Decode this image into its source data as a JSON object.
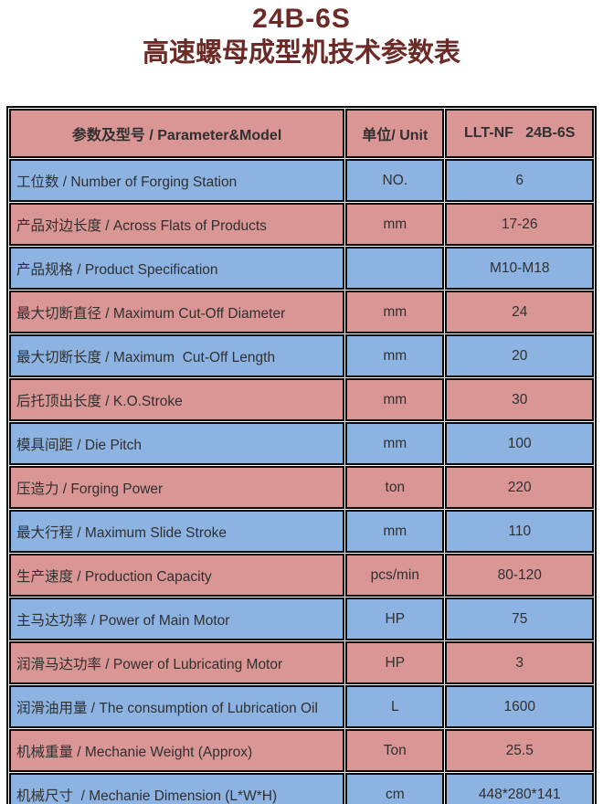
{
  "page": {
    "title": "24B-6S",
    "subtitle": "高速螺母成型机技术参数表"
  },
  "colors": {
    "title_text": "#6B2A26",
    "header_row": "#D99694",
    "row_pink": "#D99694",
    "row_blue": "#8DB3E2",
    "cell_border": "#0A0A0A",
    "cell_text": "#303030"
  },
  "table": {
    "columns": {
      "parameter": "参数及型号 / Parameter&Model",
      "unit": "单位/ Unit",
      "model": "LLT-NF   24B-6S"
    },
    "rows": [
      {
        "label": "工位数 / Number of Forging Station",
        "unit": "NO.",
        "value": "6"
      },
      {
        "label": "产品对边长度 / Across Flats of Products",
        "unit": "mm",
        "value": "17-26"
      },
      {
        "label": "产品规格 / Product Specification",
        "unit": "",
        "value": "M10-M18"
      },
      {
        "label": "最大切断直径 / Maximum Cut-Off Diameter",
        "unit": "mm",
        "value": "24"
      },
      {
        "label": "最大切断长度 / Maximum  Cut-Off Length",
        "unit": "mm",
        "value": "20"
      },
      {
        "label": "后托顶出长度 / K.O.Stroke",
        "unit": "mm",
        "value": "30"
      },
      {
        "label": "模具间距 / Die Pitch",
        "unit": "mm",
        "value": "100"
      },
      {
        "label": "压造力 / Forging Power",
        "unit": "ton",
        "value": "220"
      },
      {
        "label": "最大行程 / Maximum Slide Stroke",
        "unit": "mm",
        "value": "110"
      },
      {
        "label": "生产速度 / Production Capacity",
        "unit": "pcs/min",
        "value": "80-120"
      },
      {
        "label": "主马达功率 / Power of Main Motor",
        "unit": "HP",
        "value": "75"
      },
      {
        "label": "润滑马达功率 / Power of Lubricating Motor",
        "unit": "HP",
        "value": "3"
      },
      {
        "label": "润滑油用量 / The consumption of Lubrication Oil",
        "unit": "L",
        "value": "1600"
      },
      {
        "label": "机械重量 / Mechanie Weight (Approx)",
        "unit": "Ton",
        "value": "25.5"
      },
      {
        "label": "机械尺寸  / Mechanie Dimension (L*W*H)",
        "unit": "cm",
        "value": "448*280*141"
      }
    ]
  }
}
